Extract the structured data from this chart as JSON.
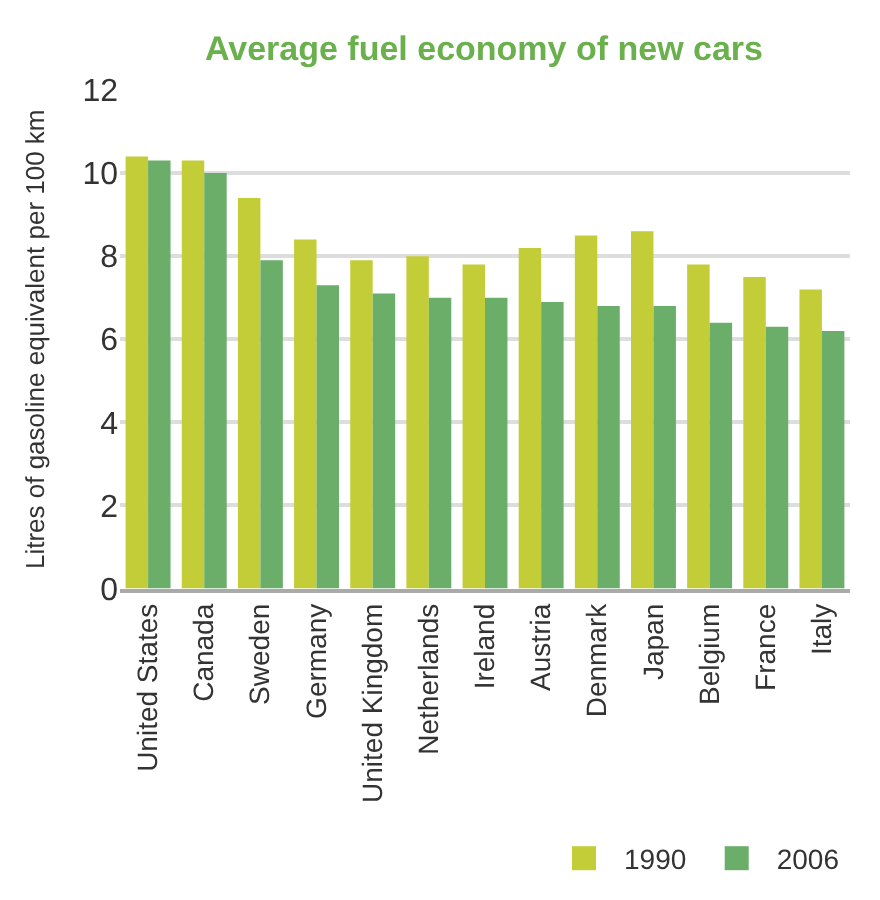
{
  "chart_data": {
    "type": "bar",
    "title": "Average fuel economy of new cars",
    "ylabel": "Litres of gasoline equivalent per 100 km",
    "categories": [
      "United States",
      "Canada",
      "Sweden",
      "Germany",
      "United Kingdom",
      "Netherlands",
      "Ireland",
      "Austria",
      "Denmark",
      "Japan",
      "Belgium",
      "France",
      "Italy"
    ],
    "series": [
      {
        "name": "1990",
        "color": "#c2cd37",
        "values": [
          10.4,
          10.3,
          9.4,
          8.4,
          7.9,
          8.0,
          7.8,
          8.2,
          8.5,
          8.6,
          7.8,
          7.5,
          7.2
        ]
      },
      {
        "name": "2006",
        "color": "#6aae69",
        "values": [
          10.3,
          10.0,
          7.9,
          7.3,
          7.1,
          7.0,
          7.0,
          6.9,
          6.8,
          6.8,
          6.4,
          6.3,
          6.2
        ]
      }
    ],
    "ylim": [
      0,
      12
    ],
    "yticks": [
      0,
      2,
      4,
      6,
      8,
      10,
      12
    ],
    "grid": "y",
    "legend": "bottom right"
  }
}
